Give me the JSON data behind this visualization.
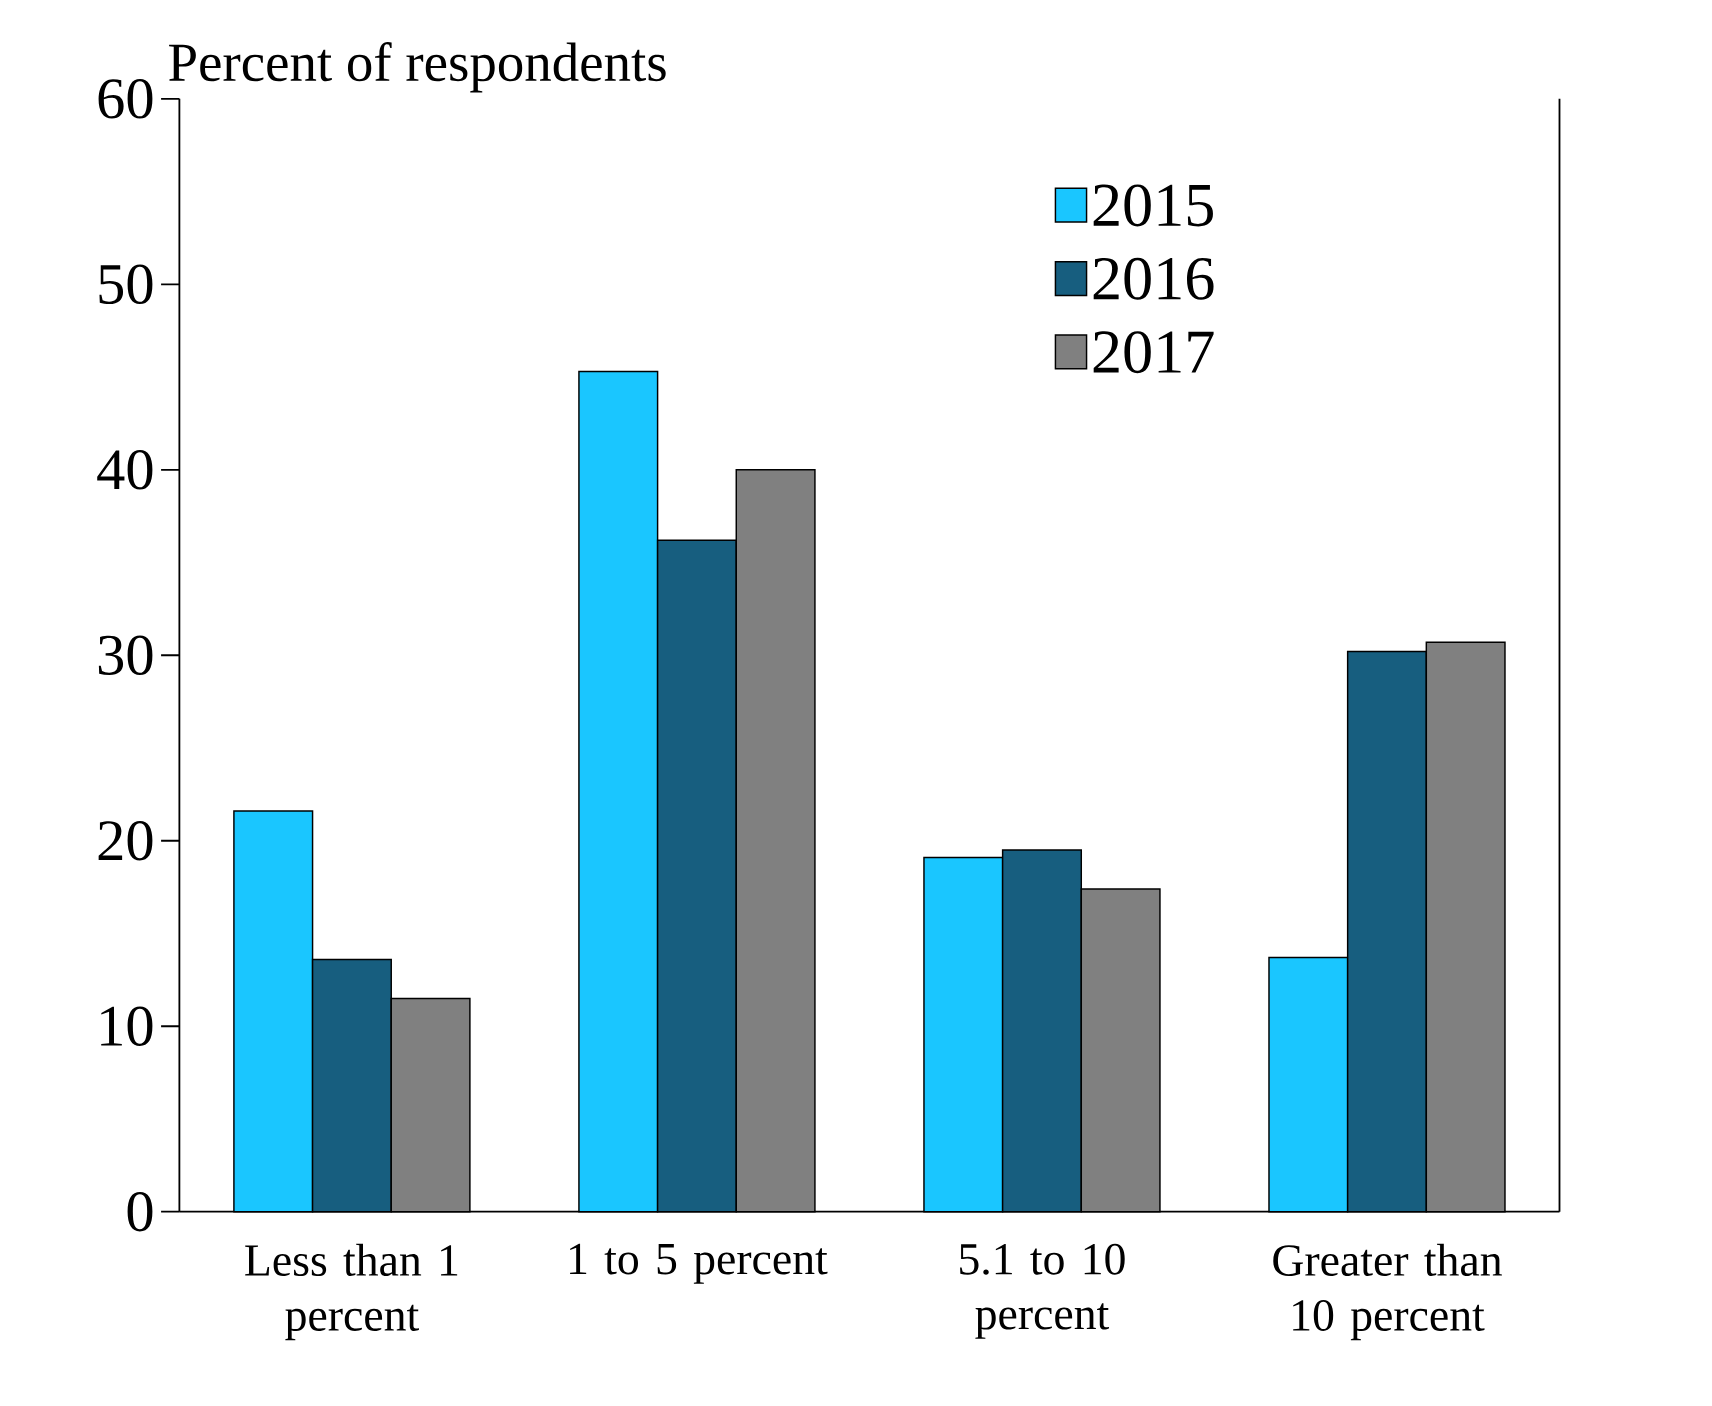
{
  "chart_data": {
    "type": "bar",
    "ylabel": "Percent of respondents",
    "categories": [
      "Less than 1 percent",
      "1 to 5 percent",
      "5.1 to 10 percent",
      "Greater than 10 percent"
    ],
    "series": [
      {
        "name": "2015",
        "color": "#1ac6ff",
        "values": [
          21.6,
          45.3,
          19.1,
          13.7
        ]
      },
      {
        "name": "2016",
        "color": "#175e7f",
        "values": [
          13.6,
          36.2,
          19.5,
          30.2
        ]
      },
      {
        "name": "2017",
        "color": "#808080",
        "values": [
          11.5,
          40.0,
          17.4,
          30.7
        ]
      }
    ],
    "ylim": [
      0,
      60
    ],
    "yticks": [
      0,
      10,
      20,
      30,
      40,
      50,
      60
    ],
    "grid": false,
    "legend": "top right"
  }
}
